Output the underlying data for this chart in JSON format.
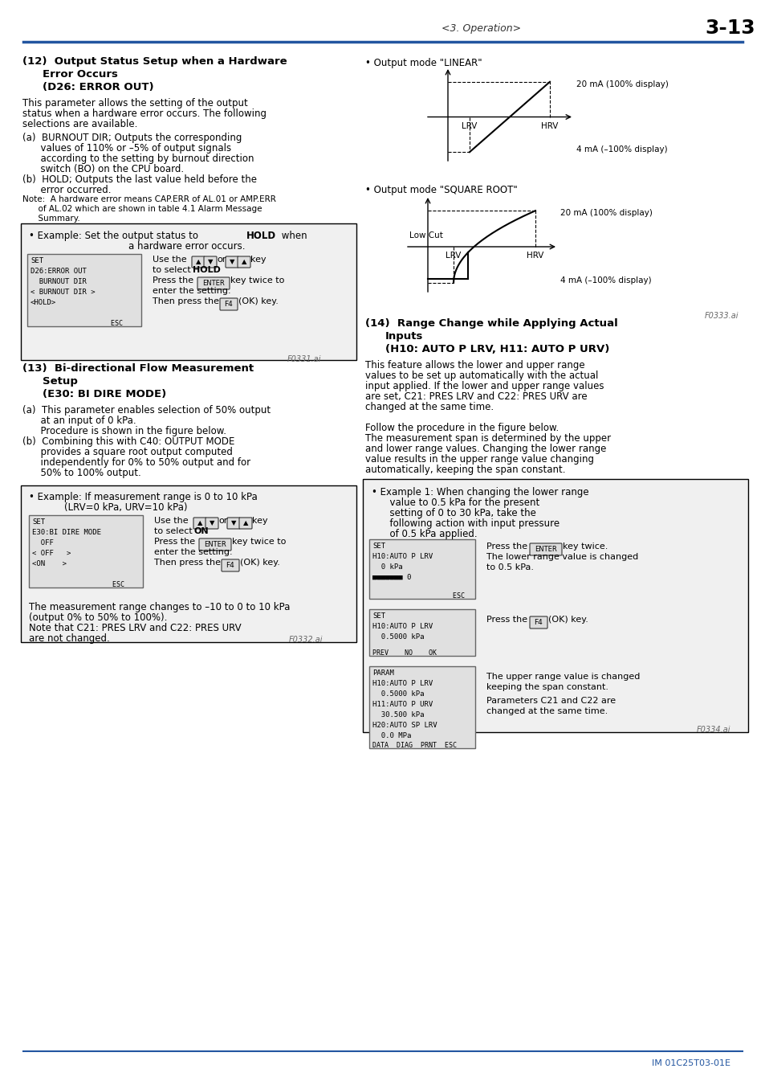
{
  "page_header_left": "<3. Operation>",
  "page_header_right": "3-13",
  "header_line_color": "#2255a0",
  "background_color": "#ffffff",
  "text_color": "#000000",
  "footer_text": "IM 01C25T03-01E",
  "footer_line_color": "#2255a0",
  "section12_title_line1": "(12)  Output Status Setup when a Hardware",
  "section12_title_line2": "Error Occurs",
  "section12_title_line3": "(D26: ERROR OUT)",
  "box12_image_label": "F0331.ai",
  "section13_title_line1": "(13)  Bi-directional Flow Measurement",
  "section13_title_line2": "Setup",
  "section13_title_line3": "(E30: BI DIRE MODE)",
  "box13_image_label": "F0332.ai",
  "section14_title_line1": "(14)  Range Change while Applying Actual",
  "section14_title_line2": "Inputs",
  "section14_title_line3": "(H10: AUTO P LRV, H11: AUTO P URV)",
  "box14_image_label": "F0334.ai",
  "linear_chart_label": "• Output mode \"LINEAR\"",
  "linear_20mA": "20 mA (100% display)",
  "linear_4mA": "4 mA (–100% display)",
  "linear_LRV": "LRV",
  "linear_HRV": "HRV",
  "sqroot_chart_label": "• Output mode \"SQUARE ROOT\"",
  "sqroot_LowCut": "Low Cut",
  "sqroot_20mA": "20 mA (100% display)",
  "sqroot_4mA": "4 mA (–100% display)",
  "sqroot_LRV": "LRV",
  "sqroot_HRV": "HRV",
  "sqroot_image_label": "F0333.ai"
}
